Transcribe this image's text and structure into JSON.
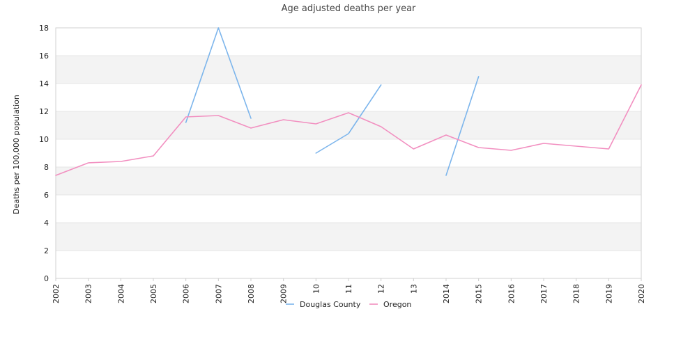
{
  "chart_data": {
    "type": "line",
    "title": "Age adjusted deaths per year",
    "xlabel": "",
    "ylabel": "Deaths per 100,000 population",
    "x": [
      "2002",
      "2003",
      "2004",
      "2005",
      "2006",
      "2007",
      "2008",
      "2009",
      "2010",
      "2011",
      "2012",
      "2013",
      "2014",
      "2015",
      "2016",
      "2017",
      "2018",
      "2019",
      "2020"
    ],
    "x_tick_labels": [
      "2002",
      "2003",
      "2004",
      "2005",
      "2006",
      "2007",
      "2008",
      "2009",
      "10",
      "11",
      "12",
      "13",
      "2014",
      "2015",
      "2016",
      "2017",
      "2018",
      "2019",
      "2020"
    ],
    "ylim": [
      0,
      18
    ],
    "yticks": [
      0,
      2,
      4,
      6,
      8,
      10,
      12,
      14,
      16,
      18
    ],
    "grid": "horizontal bands",
    "legend_position": "bottom",
    "series": [
      {
        "name": "Douglas County",
        "color": "#7cb5ec",
        "values": [
          null,
          null,
          null,
          null,
          11.2,
          18.0,
          11.5,
          null,
          9.0,
          10.4,
          13.9,
          null,
          7.4,
          14.5,
          null,
          null,
          null,
          null,
          null
        ]
      },
      {
        "name": "Oregon",
        "color": "#f28fc0",
        "values": [
          7.4,
          8.3,
          8.4,
          8.8,
          11.6,
          11.7,
          10.8,
          11.4,
          11.1,
          11.9,
          10.9,
          9.3,
          10.3,
          9.4,
          9.2,
          9.7,
          9.5,
          9.3,
          13.9
        ]
      }
    ]
  }
}
